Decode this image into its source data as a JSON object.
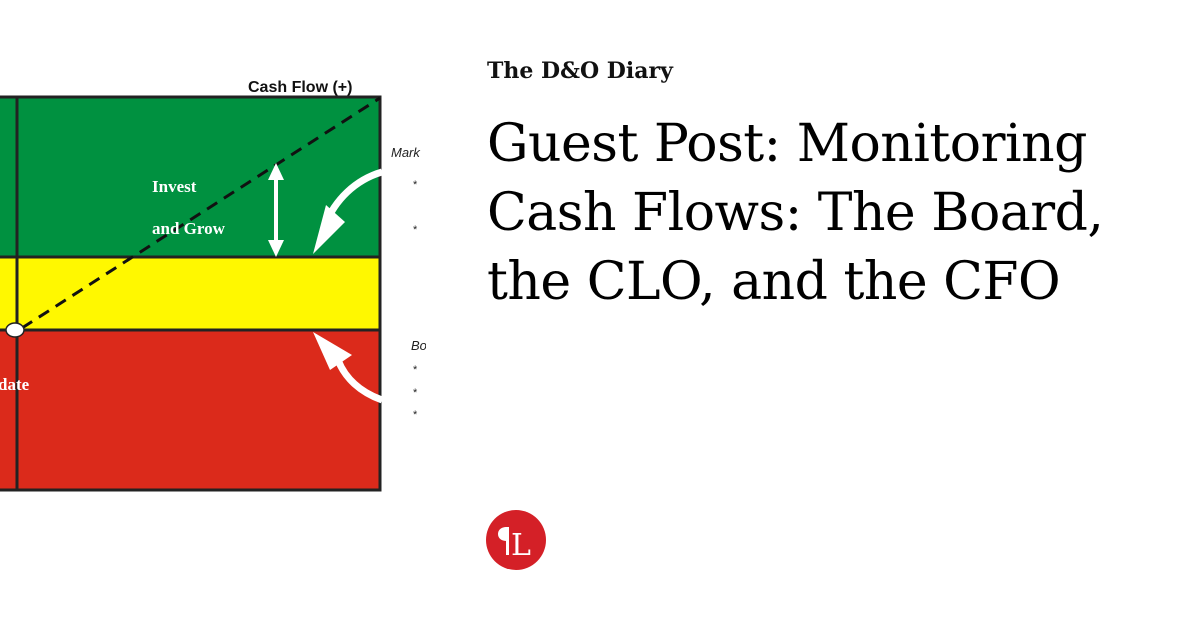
{
  "site_name": "The D&O Diary",
  "post_title": "Guest Post: Monitoring Cash Flows: The Board, the CLO, and the CFO",
  "figure": {
    "axis_label": "Cash Flow (+)",
    "zone_label_line1": "Invest",
    "zone_label_line2": "and Grow",
    "zone_label_partial": "date",
    "side_label_top": "Mark",
    "side_label_bottom": "Bo",
    "bullet": "*",
    "colors": {
      "green": "#009140",
      "yellow": "#fff800",
      "red": "#db2a1b"
    }
  },
  "logo": {
    "letter": "L",
    "color": "#d42027",
    "icon": "pilcrow-l-logo"
  }
}
